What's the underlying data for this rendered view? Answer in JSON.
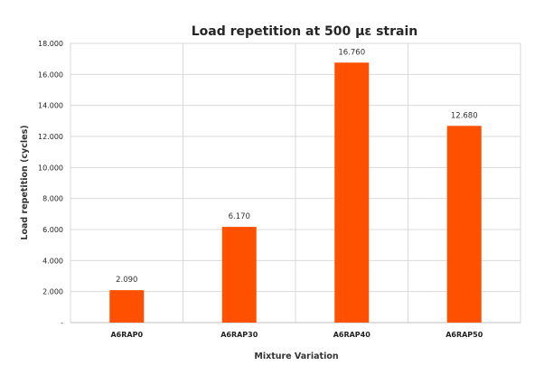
{
  "chart_data": {
    "type": "bar",
    "title": "Load repetition at 500 με strain",
    "xlabel": "Mixture Variation",
    "ylabel": "Load repetition (cycles)",
    "categories": [
      "A6RAP0",
      "A6RAP30",
      "A6RAP40",
      "A6RAP50"
    ],
    "values": [
      2090,
      6170,
      16760,
      12680
    ],
    "data_labels": [
      "2.090",
      "6.170",
      "16.760",
      "12.680"
    ],
    "ylim": [
      0,
      18000
    ],
    "yticks": [
      0,
      2000,
      4000,
      6000,
      8000,
      10000,
      12000,
      14000,
      16000,
      18000
    ],
    "ytick_labels": [
      "-",
      "2.000",
      "4.000",
      "6.000",
      "8.000",
      "10.000",
      "12.000",
      "14.000",
      "16.000",
      "18.000"
    ],
    "grid": true,
    "legend": "none",
    "bar_color": "#FF5000"
  }
}
